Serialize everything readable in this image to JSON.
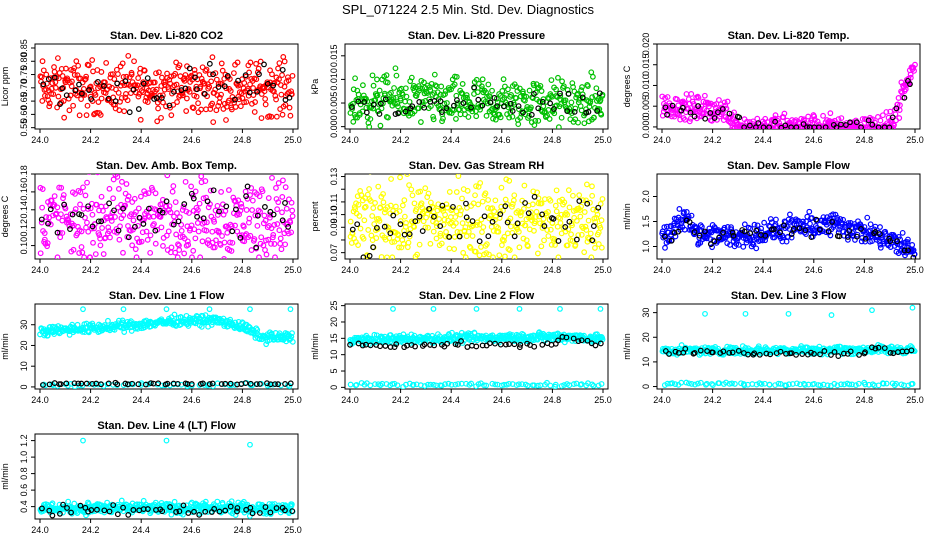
{
  "figure_title": "SPL_071224  2.5 Min. Std. Dev. Diagnostics",
  "chart_data": [
    {
      "type": "scatter",
      "title": "Stan. Dev. Li-820 CO2",
      "ylabel": "Licor ppm",
      "color": "#ff0000",
      "xlim": [
        24.0,
        25.0
      ],
      "ylim": [
        0.545,
        0.865
      ],
      "xticks": [
        24.0,
        24.2,
        24.4,
        24.6,
        24.8,
        25.0
      ],
      "xticklabels": [
        "24.0",
        "24.2",
        "24.4",
        "24.6",
        "24.8",
        "25.0"
      ],
      "yticks": [
        0.55,
        0.6,
        0.65,
        0.7,
        0.75,
        0.8,
        0.85
      ],
      "yticklabels": [
        "0.55",
        "0.60",
        "0.65",
        "0.70",
        "0.75",
        "0.80",
        "0.85"
      ],
      "series": [
        {
          "color": "#ff0000",
          "count": 420,
          "profile": [
            [
              24.0,
              0.7
            ],
            [
              25.0,
              0.7
            ]
          ],
          "spread": 0.05
        },
        {
          "color": "#000000",
          "count": 50,
          "profile": [
            [
              24.0,
              0.69
            ],
            [
              25.0,
              0.7
            ]
          ],
          "spread": 0.04
        }
      ]
    },
    {
      "type": "scatter",
      "title": "Stan. Dev. Li-820 Pressure",
      "ylabel": "kPa",
      "color": "#00c000",
      "xlim": [
        24.0,
        25.0
      ],
      "ylim": [
        -0.0005,
        0.0175
      ],
      "xticks": [
        24.0,
        24.2,
        24.4,
        24.6,
        24.8,
        25.0
      ],
      "xticklabels": [
        "24.0",
        "24.2",
        "24.4",
        "24.6",
        "24.8",
        "25.0"
      ],
      "yticks": [
        0.0,
        0.005,
        0.01,
        0.015
      ],
      "yticklabels": [
        "0.000",
        "0.005",
        "0.010",
        "0.015"
      ],
      "series": [
        {
          "color": "#00c000",
          "count": 420,
          "profile": [
            [
              24.0,
              0.005
            ],
            [
              24.2,
              0.006
            ],
            [
              24.4,
              0.005
            ],
            [
              25.0,
              0.005
            ]
          ],
          "spread": 0.0025
        },
        {
          "color": "#000000",
          "count": 50,
          "profile": [
            [
              24.0,
              0.004
            ],
            [
              25.0,
              0.005
            ]
          ],
          "spread": 0.0015
        }
      ]
    },
    {
      "type": "scatter",
      "title": "Stan. Dev. Li-820 Temp.",
      "ylabel": "degrees C",
      "color": "#ff00ff",
      "xlim": [
        24.0,
        25.0
      ],
      "ylim": [
        -0.0005,
        0.02
      ],
      "xticks": [
        24.0,
        24.2,
        24.4,
        24.6,
        24.8,
        25.0
      ],
      "xticklabels": [
        "24.0",
        "24.2",
        "24.4",
        "24.6",
        "24.8",
        "25.0"
      ],
      "yticks": [
        0.0,
        0.005,
        0.01,
        0.015,
        0.02
      ],
      "yticklabels": [
        "0.000",
        "0.005",
        "0.010",
        "0.015",
        "0.020"
      ],
      "series": [
        {
          "color": "#ff00ff",
          "count": 420,
          "profile": [
            [
              24.0,
              0.005
            ],
            [
              24.25,
              0.004
            ],
            [
              24.31,
              0.0
            ],
            [
              24.9,
              0.0
            ],
            [
              24.95,
              0.008
            ],
            [
              25.0,
              0.015
            ]
          ],
          "spread": 0.0015
        },
        {
          "color": "#000000",
          "count": 50,
          "profile": [
            [
              24.0,
              0.004
            ],
            [
              24.3,
              0.003
            ],
            [
              24.32,
              0.0
            ],
            [
              24.9,
              0.0
            ],
            [
              25.0,
              0.014
            ]
          ],
          "spread": 0.001
        }
      ]
    },
    {
      "type": "scatter",
      "title": "Stan. Dev. Amb. Box Temp.",
      "ylabel": "degrees C",
      "color": "#ff00ff",
      "xlim": [
        24.0,
        25.0
      ],
      "ylim": [
        0.085,
        0.18
      ],
      "xticks": [
        24.0,
        24.2,
        24.4,
        24.6,
        24.8,
        25.0
      ],
      "xticklabels": [
        "24.0",
        "24.2",
        "24.4",
        "24.6",
        "24.8",
        "25.0"
      ],
      "yticks": [
        0.1,
        0.12,
        0.14,
        0.16,
        0.18
      ],
      "yticklabels": [
        "0.10",
        "0.12",
        "0.14",
        "0.16",
        "0.18"
      ],
      "series": [
        {
          "color": "#ff00ff",
          "count": 420,
          "profile": [
            [
              24.0,
              0.13
            ],
            [
              25.0,
              0.13
            ]
          ],
          "spread": 0.022
        },
        {
          "color": "#000000",
          "count": 50,
          "profile": [
            [
              24.0,
              0.13
            ],
            [
              25.0,
              0.13
            ]
          ],
          "spread": 0.015
        }
      ]
    },
    {
      "type": "scatter",
      "title": "Stan. Dev. Gas Stream RH",
      "ylabel": "percent",
      "color": "#ffff00",
      "xlim": [
        24.0,
        25.0
      ],
      "ylim": [
        0.065,
        0.132
      ],
      "xticks": [
        24.0,
        24.2,
        24.4,
        24.6,
        24.8,
        25.0
      ],
      "xticklabels": [
        "24.0",
        "24.2",
        "24.4",
        "24.6",
        "24.8",
        "25.0"
      ],
      "yticks": [
        0.07,
        0.08,
        0.09,
        0.1,
        0.11,
        0.12,
        0.13
      ],
      "yticklabels": [
        "0.07",
        "",
        "0.09",
        "0.10",
        "0.11",
        "",
        "0.13"
      ],
      "series": [
        {
          "color": "#ffff00",
          "count": 420,
          "profile": [
            [
              24.0,
              0.095
            ],
            [
              25.0,
              0.095
            ]
          ],
          "spread": 0.015
        },
        {
          "color": "#000000",
          "count": 50,
          "profile": [
            [
              24.0,
              0.09
            ],
            [
              25.0,
              0.095
            ]
          ],
          "spread": 0.012
        }
      ]
    },
    {
      "type": "scatter",
      "title": "Stan. Dev. Sample Flow",
      "ylabel": "ml/min",
      "color": "#0000ff",
      "xlim": [
        24.0,
        25.0
      ],
      "ylim": [
        0.75,
        2.45
      ],
      "xticks": [
        24.0,
        24.2,
        24.4,
        24.6,
        24.8,
        25.0
      ],
      "xticklabels": [
        "24.0",
        "24.2",
        "24.4",
        "24.6",
        "24.8",
        "25.0"
      ],
      "yticks": [
        1.0,
        1.5,
        2.0
      ],
      "yticklabels": [
        "1.0",
        "1.5",
        "2.0"
      ],
      "series": [
        {
          "color": "#0000ff",
          "count": 420,
          "profile": [
            [
              24.0,
              1.15
            ],
            [
              24.1,
              1.6
            ],
            [
              24.15,
              1.2
            ],
            [
              24.3,
              1.2
            ],
            [
              24.5,
              1.35
            ],
            [
              24.7,
              1.45
            ],
            [
              24.85,
              1.2
            ],
            [
              24.95,
              1.0
            ],
            [
              25.0,
              0.95
            ]
          ],
          "spread": 0.12
        },
        {
          "color": "#000000",
          "count": 50,
          "profile": [
            [
              24.0,
              1.1
            ],
            [
              24.1,
              1.4
            ],
            [
              24.2,
              1.2
            ],
            [
              24.6,
              1.4
            ],
            [
              24.9,
              1.1
            ],
            [
              25.0,
              0.95
            ]
          ],
          "spread": 0.08
        }
      ]
    },
    {
      "type": "scatter",
      "title": "Stan. Dev. Line 1 Flow",
      "ylabel": "ml/min",
      "color": "#00ffff",
      "xlim": [
        24.0,
        25.0
      ],
      "ylim": [
        -1.0,
        40.0
      ],
      "xticks": [
        24.0,
        24.2,
        24.4,
        24.6,
        24.8,
        25.0
      ],
      "xticklabels": [
        "24.0",
        "24.2",
        "24.4",
        "24.6",
        "24.8",
        "25.0"
      ],
      "yticks": [
        0,
        10,
        20,
        30
      ],
      "yticklabels": [
        "0",
        "10",
        "20",
        "30"
      ],
      "series": [
        {
          "color": "#00ffff",
          "count": 380,
          "profile": [
            [
              24.0,
              27
            ],
            [
              24.3,
              29
            ],
            [
              24.55,
              32
            ],
            [
              24.7,
              32
            ],
            [
              24.8,
              29
            ],
            [
              24.88,
              24
            ],
            [
              25.0,
              24
            ]
          ],
          "spread": 1.2
        },
        {
          "color": "#00ffff",
          "count": 60,
          "profile": [
            [
              24.0,
              1
            ],
            [
              25.0,
              1
            ]
          ],
          "spread": 0.4
        },
        {
          "color": "#000000",
          "count": 50,
          "profile": [
            [
              24.0,
              1.5
            ],
            [
              25.0,
              1.5
            ]
          ],
          "spread": 0.2
        }
      ],
      "outliers": [
        [
          24.17,
          37.5
        ],
        [
          24.33,
          37.5
        ],
        [
          24.5,
          37.5
        ],
        [
          24.67,
          37.5
        ],
        [
          24.83,
          37.5
        ],
        [
          24.99,
          37.5
        ]
      ]
    },
    {
      "type": "scatter",
      "title": "Stan. Dev. Line 2 Flow",
      "ylabel": "ml/min",
      "color": "#00ffff",
      "xlim": [
        24.0,
        25.0
      ],
      "ylim": [
        -0.5,
        25.5
      ],
      "xticks": [
        24.0,
        24.2,
        24.4,
        24.6,
        24.8,
        25.0
      ],
      "xticklabels": [
        "24.0",
        "24.2",
        "24.4",
        "24.6",
        "24.8",
        "25.0"
      ],
      "yticks": [
        0,
        5,
        10,
        15,
        20,
        25
      ],
      "yticklabels": [
        "0",
        "5",
        "10",
        "15",
        "20",
        "25"
      ],
      "series": [
        {
          "color": "#00ffff",
          "count": 380,
          "profile": [
            [
              24.0,
              14.5
            ],
            [
              24.85,
              15.5
            ],
            [
              25.0,
              15
            ]
          ],
          "spread": 0.7
        },
        {
          "color": "#00ffff",
          "count": 80,
          "profile": [
            [
              24.0,
              0.8
            ],
            [
              25.0,
              0.8
            ]
          ],
          "spread": 0.3
        },
        {
          "color": "#000000",
          "count": 55,
          "profile": [
            [
              24.0,
              13
            ],
            [
              24.8,
              13
            ],
            [
              24.85,
              16
            ],
            [
              24.95,
              13
            ],
            [
              25.0,
              13.5
            ]
          ],
          "spread": 0.4
        }
      ],
      "outliers": [
        [
          24.17,
          24
        ],
        [
          24.33,
          24
        ],
        [
          24.5,
          24
        ],
        [
          24.67,
          24
        ],
        [
          24.83,
          24
        ],
        [
          24.99,
          24
        ]
      ]
    },
    {
      "type": "scatter",
      "title": "Stan. Dev. Line 3 Flow",
      "ylabel": "ml/min",
      "color": "#00ffff",
      "xlim": [
        24.0,
        25.0
      ],
      "ylim": [
        -1.0,
        33.5
      ],
      "xticks": [
        24.0,
        24.2,
        24.4,
        24.6,
        24.8,
        25.0
      ],
      "xticklabels": [
        "24.0",
        "24.2",
        "24.4",
        "24.6",
        "24.8",
        "25.0"
      ],
      "yticks": [
        0,
        10,
        20,
        30
      ],
      "yticklabels": [
        "0",
        "10",
        "20",
        "30"
      ],
      "series": [
        {
          "color": "#00ffff",
          "count": 380,
          "profile": [
            [
              24.0,
              14.5
            ],
            [
              25.0,
              15
            ]
          ],
          "spread": 0.8
        },
        {
          "color": "#00ffff",
          "count": 80,
          "profile": [
            [
              24.0,
              1
            ],
            [
              25.0,
              1
            ]
          ],
          "spread": 0.3
        },
        {
          "color": "#000000",
          "count": 55,
          "profile": [
            [
              24.0,
              14
            ],
            [
              24.8,
              13.5
            ],
            [
              24.85,
              16.5
            ],
            [
              24.92,
              13.5
            ],
            [
              25.0,
              15
            ]
          ],
          "spread": 0.5
        }
      ],
      "outliers": [
        [
          24.17,
          29.5
        ],
        [
          24.33,
          29.5
        ],
        [
          24.5,
          29.5
        ],
        [
          24.67,
          29
        ],
        [
          24.83,
          31
        ],
        [
          24.99,
          32
        ]
      ]
    },
    {
      "type": "scatter",
      "title": "Stan. Dev. Line 4 (LT) Flow",
      "ylabel": "ml/min",
      "color": "#00ffff",
      "xlim": [
        24.0,
        25.0
      ],
      "ylim": [
        0.25,
        1.28
      ],
      "xticks": [
        24.0,
        24.2,
        24.4,
        24.6,
        24.8,
        25.0
      ],
      "xticklabels": [
        "24.0",
        "24.2",
        "24.4",
        "24.6",
        "24.8",
        "25.0"
      ],
      "yticks": [
        0.4,
        0.6,
        0.8,
        1.0,
        1.2
      ],
      "yticklabels": [
        "0.4",
        "0.6",
        "0.8",
        "1.0",
        "1.2"
      ],
      "series": [
        {
          "color": "#00ffff",
          "count": 420,
          "profile": [
            [
              24.0,
              0.38
            ],
            [
              25.0,
              0.38
            ]
          ],
          "spread": 0.035
        },
        {
          "color": "#000000",
          "count": 50,
          "profile": [
            [
              24.0,
              0.36
            ],
            [
              25.0,
              0.36
            ]
          ],
          "spread": 0.03
        }
      ],
      "outliers": [
        [
          24.17,
          1.2
        ],
        [
          24.5,
          1.2
        ],
        [
          24.83,
          1.15
        ]
      ]
    }
  ]
}
